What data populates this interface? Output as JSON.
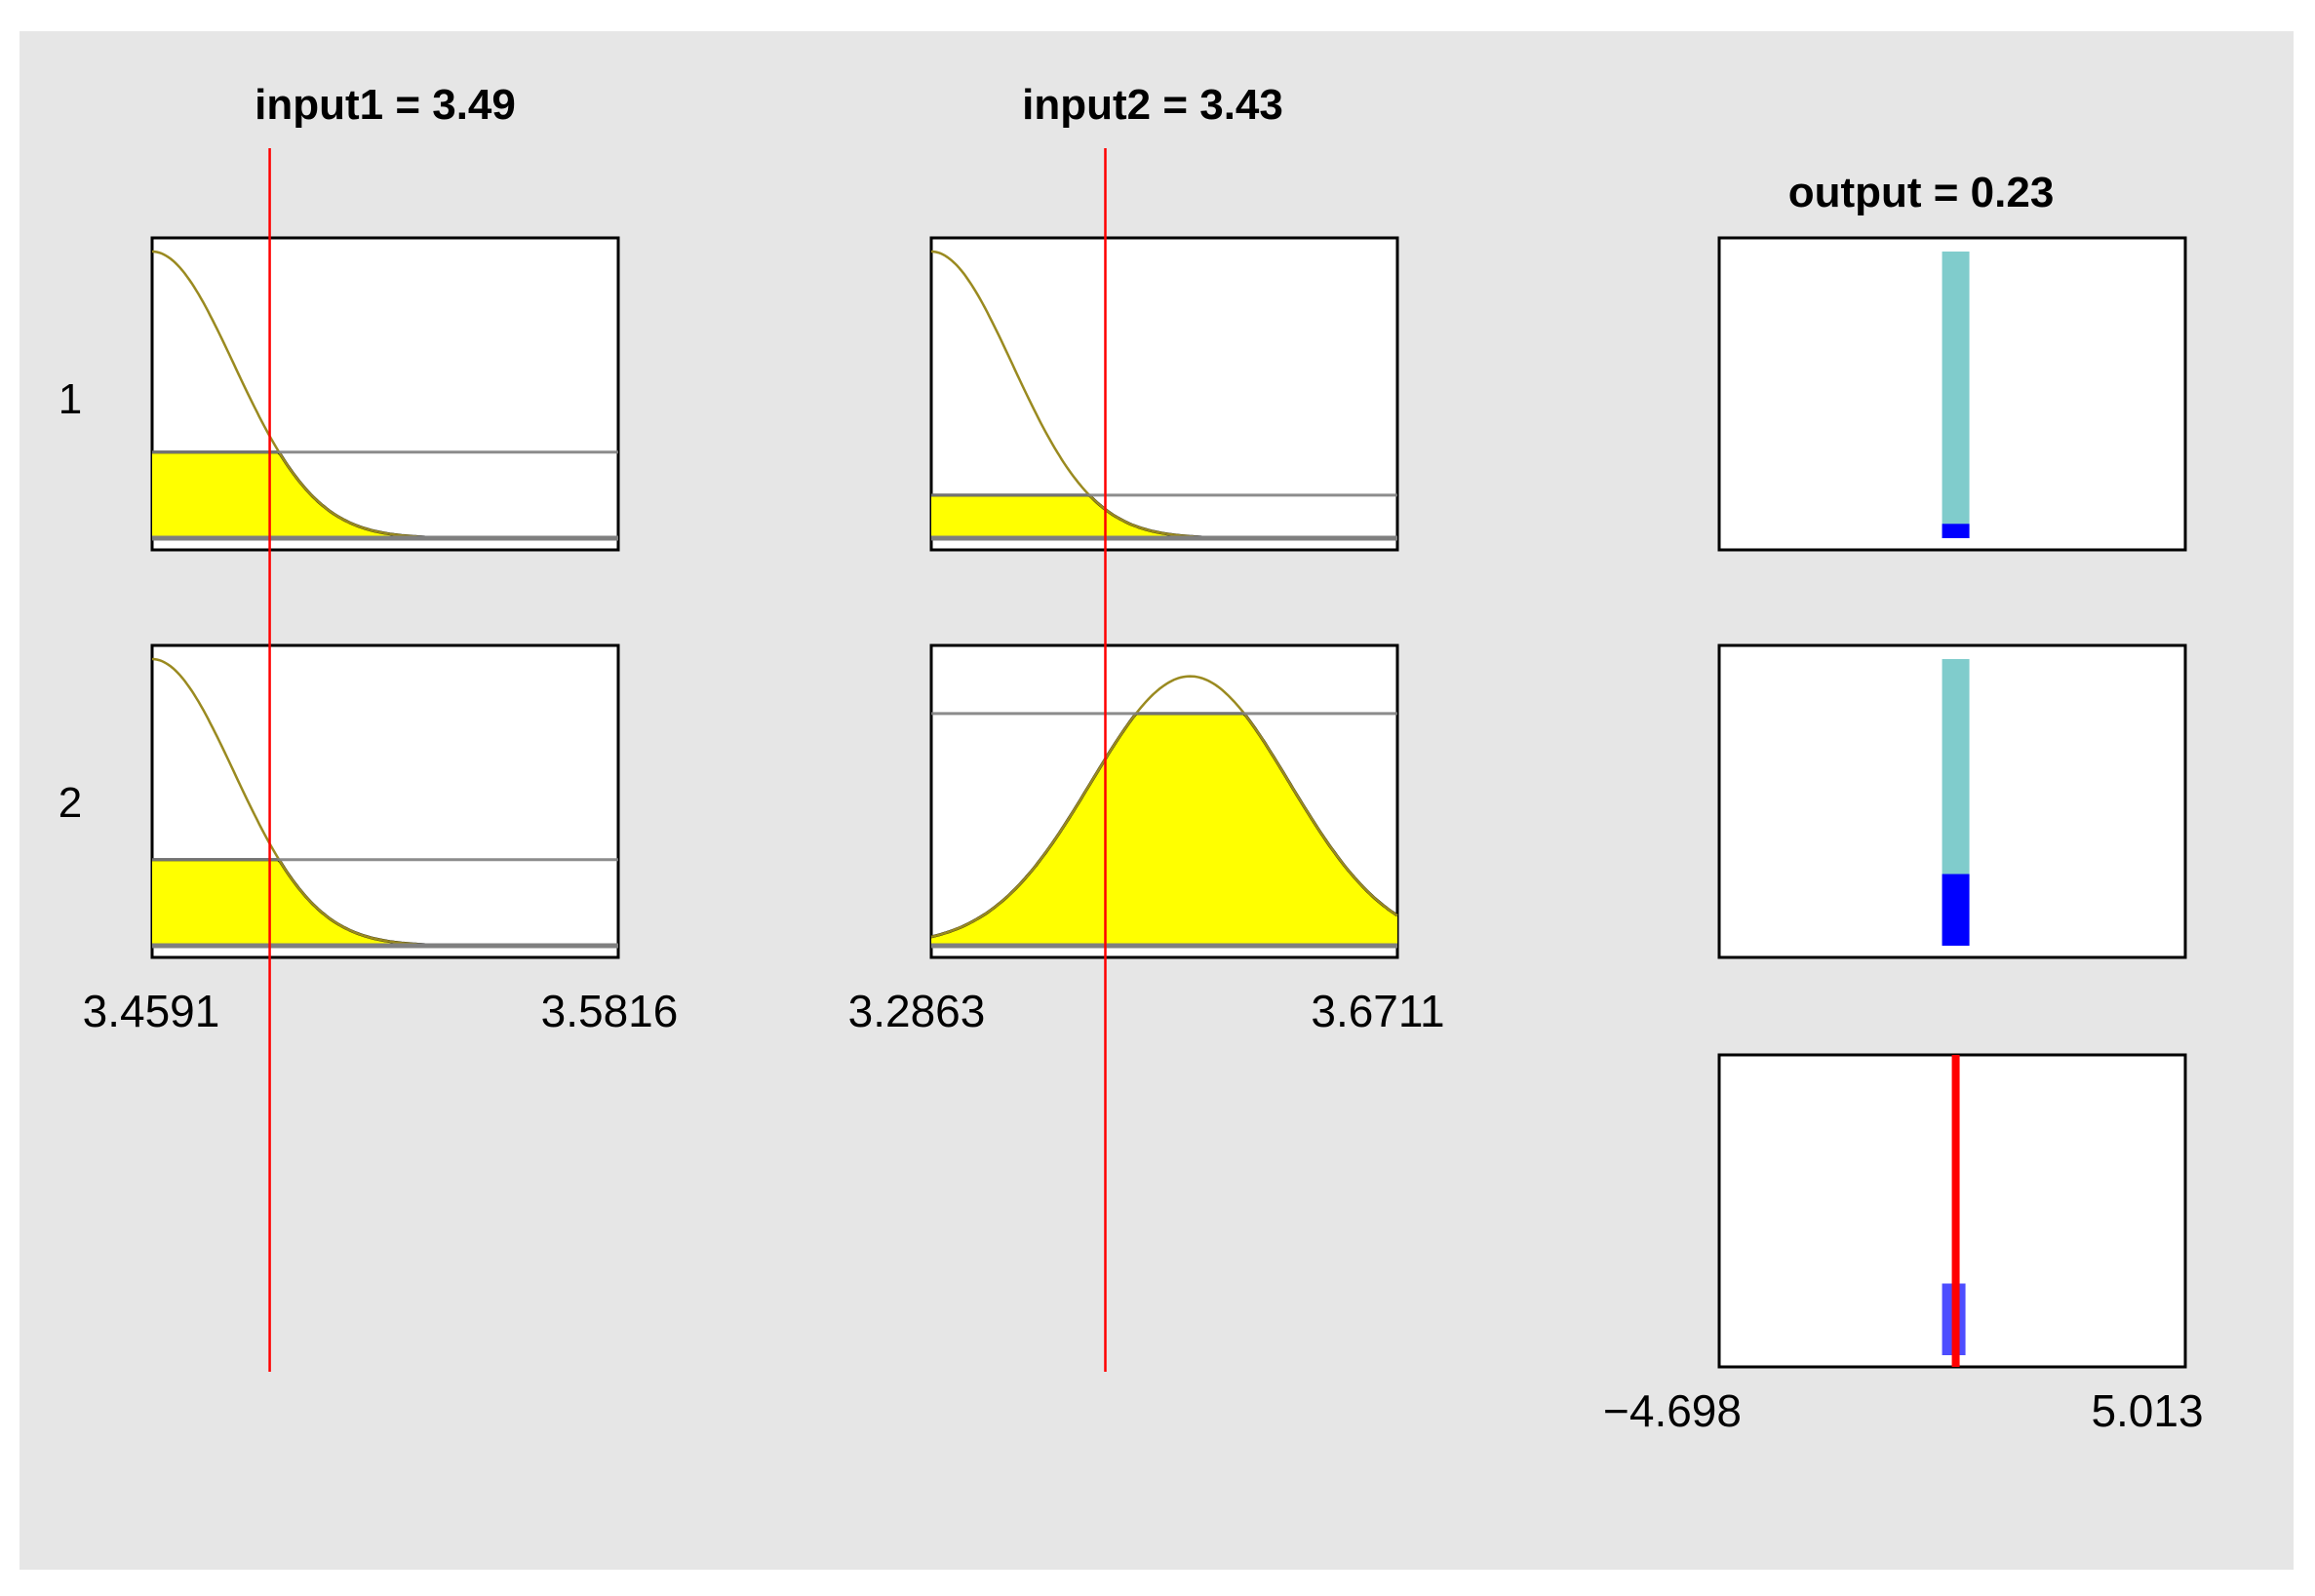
{
  "inputs": [
    {
      "title": "input1 = 3.49",
      "range_min": 3.4591,
      "range_min_label": "3.4591",
      "range_max": 3.5816,
      "range_max_label": "3.5816",
      "value": 3.49,
      "mfs": [
        {
          "center": 3.4591,
          "sigma": 0.0215,
          "height": 1.0,
          "firing": 0.3
        },
        {
          "center": 3.4591,
          "sigma": 0.0215,
          "height": 1.0,
          "firing": 0.3
        }
      ]
    },
    {
      "title": "input2 = 3.43",
      "range_min": 3.2863,
      "range_min_label": "3.2863",
      "range_max": 3.6711,
      "range_max_label": "3.6711",
      "value": 3.43,
      "mfs": [
        {
          "center": 3.2863,
          "sigma": 0.067,
          "height": 1.0,
          "firing": 0.15
        },
        {
          "center": 3.5,
          "sigma": 0.0818,
          "height": 0.94,
          "firing": 0.81
        }
      ]
    }
  ],
  "rules": [
    {
      "label": "1",
      "output_value": 0.23,
      "firing": 0.05
    },
    {
      "label": "2",
      "output_value": 0.23,
      "firing": 0.25
    }
  ],
  "output": {
    "title": "output = 0.23",
    "value": 0.23,
    "range_min": -4.698,
    "range_min_label": "−4.698",
    "range_max": 5.013,
    "range_max_label": "5.013",
    "aggregate_height": 0.25
  },
  "colors": {
    "background": "#e6e6e6",
    "plot_bg": "#ffffff",
    "fill": "#ffff00",
    "curve": "#9a8a20",
    "cut_line": "#ff0000",
    "firing_line": "#7f7f7f",
    "singleton_full": "#80cccc",
    "singleton_fired": "#0000ff",
    "aggregate": "#4d4dff",
    "output_line": "#ff0000"
  }
}
